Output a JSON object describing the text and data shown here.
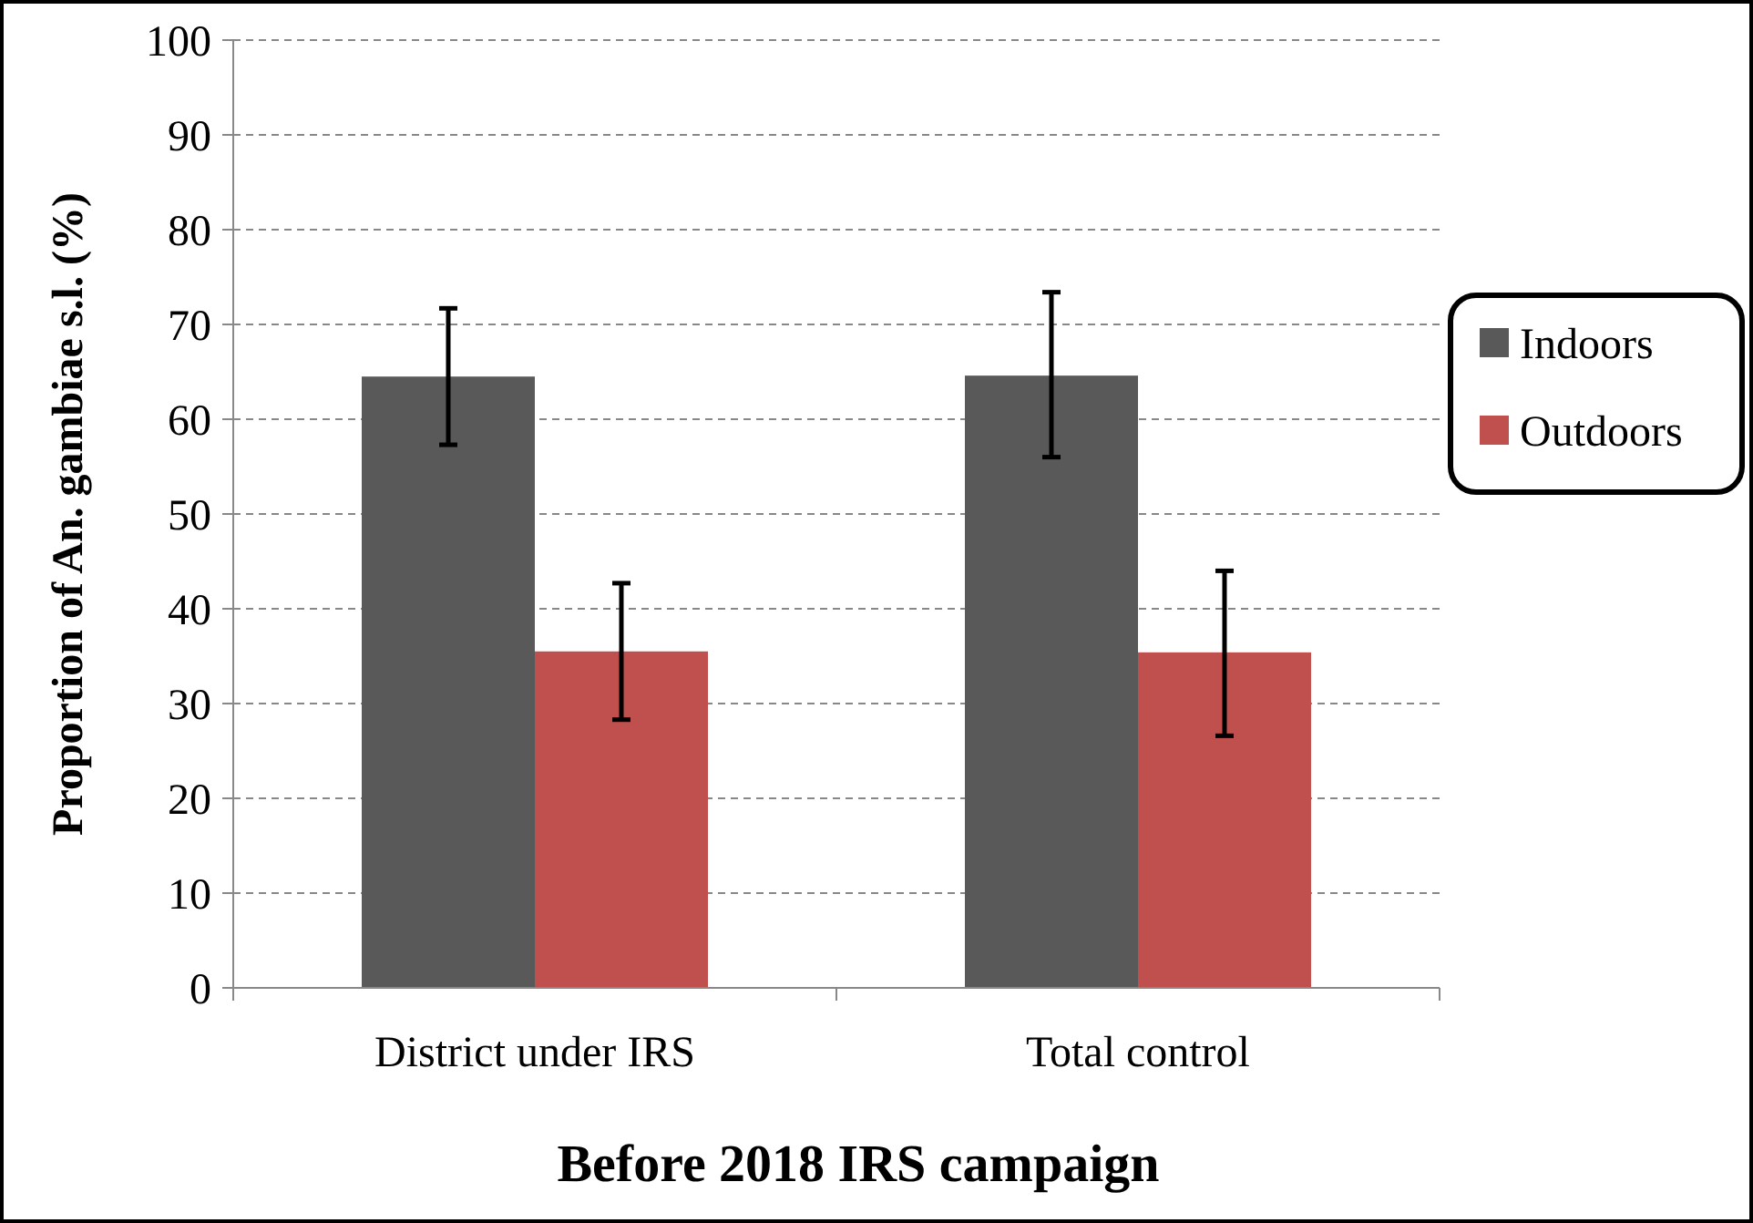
{
  "chart_data": {
    "type": "bar",
    "title": "Before 2018 IRS campaign",
    "ylabel": "Proportion of An. gambiae s.l. (%)",
    "categories": [
      "District under IRS",
      "Total control"
    ],
    "series": [
      {
        "name": "Indoors",
        "color": "#595959",
        "values": [
          64.5,
          64.6
        ],
        "errors": [
          [
            57.3,
            71.7
          ],
          [
            56.0,
            73.4
          ]
        ]
      },
      {
        "name": "Outdoors",
        "color": "#c0504d",
        "values": [
          35.5,
          35.4
        ],
        "errors": [
          [
            28.3,
            42.7
          ],
          [
            26.6,
            44.0
          ]
        ]
      }
    ],
    "ylim": [
      0,
      100
    ],
    "yticks": [
      0,
      10,
      20,
      30,
      40,
      50,
      60,
      70,
      80,
      90,
      100
    ],
    "grid": "y",
    "legend": "right"
  }
}
